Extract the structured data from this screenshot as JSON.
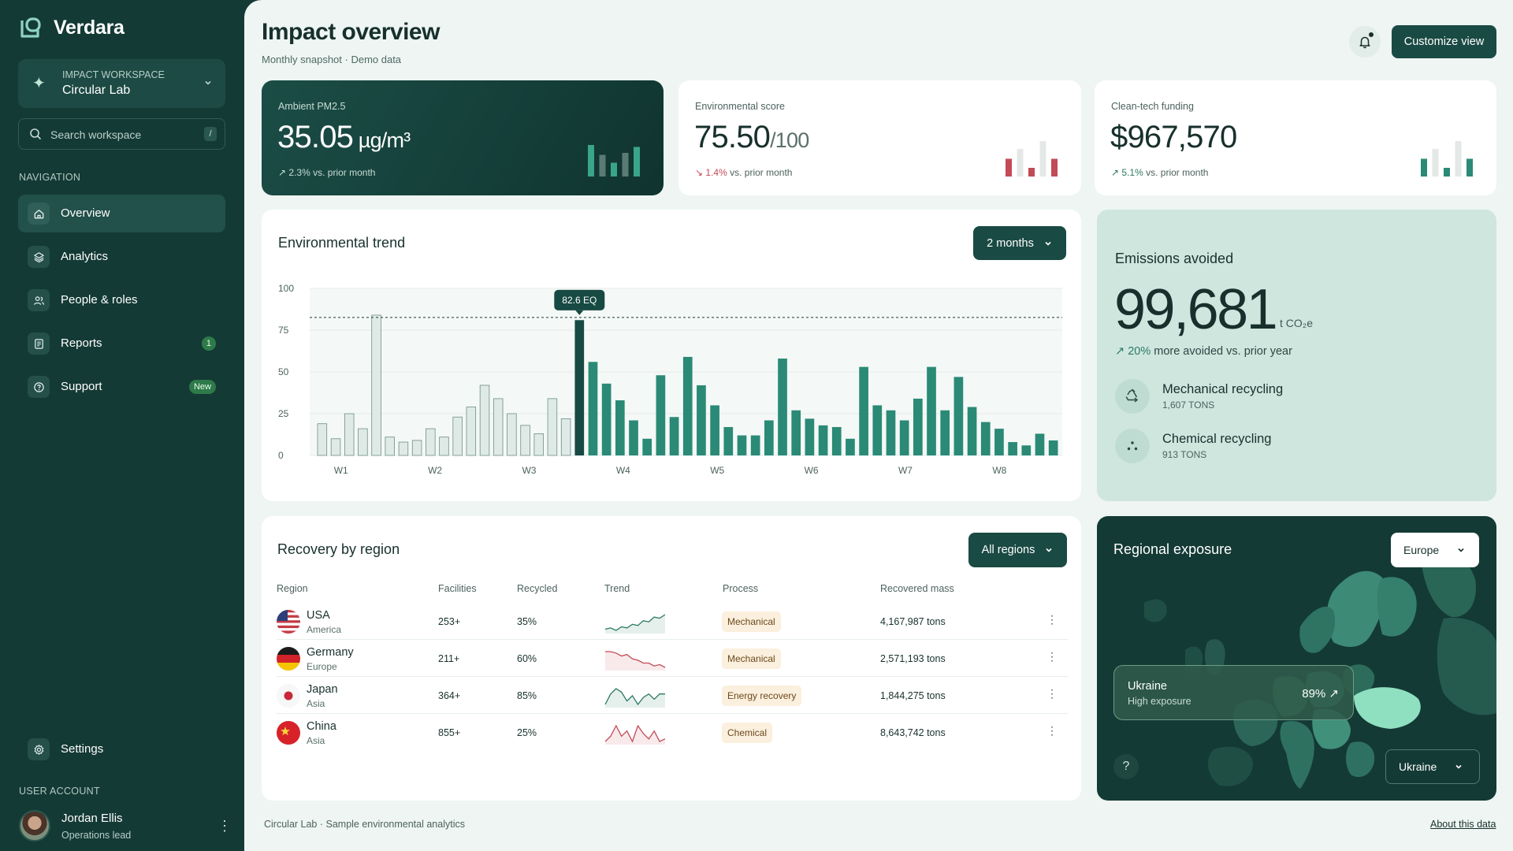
{
  "app": {
    "name": "Verdara"
  },
  "workspace": {
    "label": "IMPACT WORKSPACE",
    "name": "Circular Lab"
  },
  "search": {
    "placeholder": "Search workspace",
    "shortcut": "/"
  },
  "nav": {
    "section_label": "NAVIGATION",
    "items": [
      {
        "label": "Overview",
        "icon": "home-icon",
        "active": true
      },
      {
        "label": "Analytics",
        "icon": "layers-icon"
      },
      {
        "label": "People & roles",
        "icon": "people-icon"
      },
      {
        "label": "Reports",
        "icon": "document-icon",
        "badge": "1"
      },
      {
        "label": "Support",
        "icon": "help-circle-icon",
        "badge": "New"
      }
    ],
    "settings_label": "Settings",
    "account_label": "USER ACCOUNT"
  },
  "user": {
    "name": "Jordan Ellis",
    "role": "Operations lead"
  },
  "header": {
    "title": "Impact overview",
    "subtitle": "Monthly snapshot · Demo data",
    "customize_label": "Customize view"
  },
  "kpis": [
    {
      "label": "Ambient PM2.5",
      "value": "35.05",
      "suffix": " µg/m³",
      "delta_arrow": "↗",
      "delta_value": "2.3%",
      "delta_text": " vs. prior month",
      "direction": "up",
      "bars": [
        0.8,
        0.55,
        0.35,
        0.6,
        0.75
      ],
      "colors": [
        "#3aa58a",
        "#5c7a74",
        "#3aa58a",
        "#5c7a74",
        "#3aa58a"
      ]
    },
    {
      "label": "Environmental score",
      "value": "75.50",
      "suffix": "/100",
      "delta_arrow": "↘",
      "delta_value": "1.4%",
      "delta_text": " vs. prior month",
      "direction": "down",
      "bars": [
        0.45,
        0.7,
        0.22,
        0.9,
        0.45
      ],
      "colors": [
        "#c24b57",
        "#e4e8e7",
        "#c24b57",
        "#e4e8e7",
        "#c24b57"
      ]
    },
    {
      "label": "Clean-tech funding",
      "value": "$967,570",
      "suffix": "",
      "delta_arrow": "↗",
      "delta_value": "5.1%",
      "delta_text": " vs. prior month",
      "direction": "up",
      "bars": [
        0.45,
        0.7,
        0.22,
        0.9,
        0.45
      ],
      "colors": [
        "#2a8a76",
        "#e4e8e7",
        "#2a8a76",
        "#e4e8e7",
        "#2a8a76"
      ]
    }
  ],
  "trend": {
    "title": "Environmental trend",
    "range_label": "2 months",
    "tooltip": "82.6 EQ",
    "reference_value": 82.6
  },
  "chart_data": {
    "type": "bar",
    "title": "Environmental trend",
    "ylim": [
      0,
      100
    ],
    "yticks": [
      "0",
      "25",
      "50",
      "75",
      "100"
    ],
    "xticks": [
      "W1",
      "W2",
      "W3",
      "W4",
      "W5",
      "W6",
      "W7",
      "W8"
    ],
    "values": [
      19,
      10,
      25,
      16,
      84,
      11,
      8,
      9,
      16,
      11,
      23,
      29,
      42,
      34,
      25,
      18,
      13,
      34,
      22,
      81,
      56,
      43,
      33,
      21,
      10,
      48,
      23,
      59,
      42,
      30,
      17,
      12,
      12,
      21,
      58,
      27,
      22,
      18,
      17,
      10,
      53,
      30,
      27,
      21,
      34,
      53,
      27,
      47,
      29,
      20,
      16,
      8,
      6,
      13,
      9
    ],
    "highlight_index": 19,
    "future_start_index": 20
  },
  "emissions": {
    "title": "Emissions avoided",
    "value": "99,681",
    "unit": "t CO₂e",
    "delta_arrow": "↗",
    "delta_value": "20%",
    "delta_text": " more avoided vs. prior year",
    "items": [
      {
        "name": "Mechanical recycling",
        "amount": "1,607 TONS",
        "icon": "recycle-icon"
      },
      {
        "name": "Chemical recycling",
        "amount": "913 TONS",
        "icon": "molecule-icon"
      }
    ]
  },
  "recovery": {
    "title": "Recovery by region",
    "filter_label": "All regions",
    "columns": [
      "Region",
      "Facilities",
      "Recycled",
      "Trend",
      "Process",
      "Recovered mass"
    ],
    "rows": [
      {
        "region": "USA",
        "continent": "America",
        "facilities": "253+",
        "recycled": "35%",
        "process": "Mechanical",
        "mass": "4,167,987 tons",
        "flag": "usa",
        "trend": [
          6,
          7,
          5,
          8,
          7,
          10,
          9,
          13,
          12,
          16,
          15,
          18
        ],
        "trend_color": "#2d7a64"
      },
      {
        "region": "Germany",
        "continent": "Europe",
        "facilities": "211+",
        "recycled": "60%",
        "process": "Mechanical",
        "mass": "2,571,193 tons",
        "flag": "germany",
        "trend": [
          18,
          18,
          17,
          15,
          16,
          13,
          12,
          10,
          10,
          8,
          9,
          7
        ],
        "trend_color": "#c24b57"
      },
      {
        "region": "Japan",
        "continent": "Asia",
        "facilities": "364+",
        "recycled": "85%",
        "process": "Energy recovery",
        "mass": "1,844,275 tons",
        "flag": "japan",
        "trend": [
          8,
          14,
          17,
          15,
          10,
          13,
          8,
          12,
          14,
          11,
          14,
          14
        ],
        "trend_color": "#2d7a64"
      },
      {
        "region": "China",
        "continent": "Asia",
        "facilities": "855+",
        "recycled": "25%",
        "process": "Chemical",
        "mass": "8,643,742 tons",
        "flag": "china",
        "trend": [
          8,
          10,
          14,
          10,
          12,
          8,
          14,
          11,
          9,
          12,
          8,
          9
        ],
        "trend_color": "#c24b57"
      }
    ]
  },
  "regional": {
    "title": "Regional exposure",
    "region_select": "Europe",
    "country_select": "Ukraine",
    "tooltip_country": "Ukraine",
    "tooltip_level": "High exposure",
    "tooltip_pct": "89% ↗",
    "help": "?"
  },
  "footer": {
    "left": "Circular Lab · Sample environmental analytics",
    "right": "About this data"
  }
}
